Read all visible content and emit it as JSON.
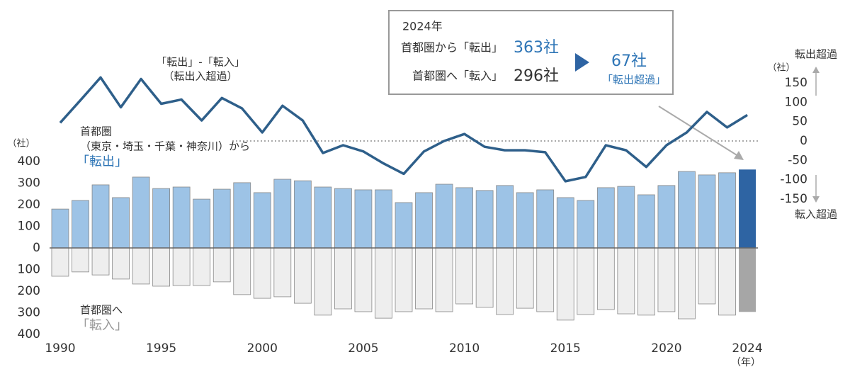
{
  "chart_data": {
    "type": "bar",
    "x": [
      1990,
      1991,
      1992,
      1993,
      1994,
      1995,
      1996,
      1997,
      1998,
      1999,
      2000,
      2001,
      2002,
      2003,
      2004,
      2005,
      2006,
      2007,
      2008,
      2009,
      2010,
      2011,
      2012,
      2013,
      2014,
      2015,
      2016,
      2017,
      2018,
      2019,
      2020,
      2021,
      2022,
      2023,
      2024
    ],
    "xlim": [
      1989.5,
      2024.5
    ],
    "xticks": [
      1990,
      1995,
      2000,
      2005,
      2010,
      2015,
      2020,
      2024
    ],
    "ylim": [
      -400,
      400
    ],
    "yticks": [
      400,
      300,
      200,
      100,
      0,
      {
        "value": -100,
        "label": "100"
      },
      {
        "value": -200,
        "label": "200"
      },
      {
        "value": -300,
        "label": "300"
      },
      {
        "value": -400,
        "label": "400"
      }
    ],
    "y2lim": [
      -150,
      150
    ],
    "y2ticks": [
      150,
      100,
      50,
      0,
      -50,
      -100,
      -150
    ],
    "series": [
      {
        "name": "「転出」",
        "color": "#9dc3e6",
        "highlight_color": "#2e64a3",
        "values": [
          180,
          220,
          292,
          233,
          328,
          275,
          282,
          226,
          272,
          302,
          256,
          318,
          311,
          282,
          275,
          269,
          269,
          210,
          256,
          295,
          279,
          266,
          289,
          256,
          269,
          233,
          220,
          279,
          285,
          246,
          289,
          354,
          338,
          348,
          363
        ]
      },
      {
        "name": "「転入」",
        "color": "#eeeeee",
        "highlight_color": "#a6a6a6",
        "values": [
          -131,
          -111,
          -125,
          -144,
          -167,
          -177,
          -174,
          -174,
          -157,
          -216,
          -233,
          -226,
          -256,
          -311,
          -282,
          -295,
          -325,
          -295,
          -282,
          -295,
          -259,
          -275,
          -308,
          -279,
          -295,
          -334,
          -308,
          -285,
          -305,
          -311,
          -295,
          -328,
          -259,
          -311,
          -296
        ]
      },
      {
        "name": "「転出」-「転入」",
        "type": "line",
        "axis": "y2",
        "color": "#2e5f8a",
        "values": [
          47,
          105,
          164,
          87,
          160,
          96,
          107,
          53,
          111,
          84,
          22,
          91,
          53,
          -31,
          -11,
          -27,
          -58,
          -85,
          -27,
          0,
          18,
          -15,
          -24,
          -24,
          -29,
          -104,
          -93,
          -11,
          -24,
          -67,
          -11,
          22,
          75,
          35,
          67
        ]
      }
    ],
    "annotations": [
      "（転出入超過）",
      "首都圏",
      "（東京・埼玉・千葉・神奈川）から",
      "首都圏へ",
      "（社）",
      "（社）",
      "転出超過",
      "転入超過",
      "（年）",
      "2024年",
      "首都圏から「転出」",
      "363社",
      "首都圏へ「転入」",
      "296社",
      "67社",
      "「転出超過」"
    ]
  }
}
